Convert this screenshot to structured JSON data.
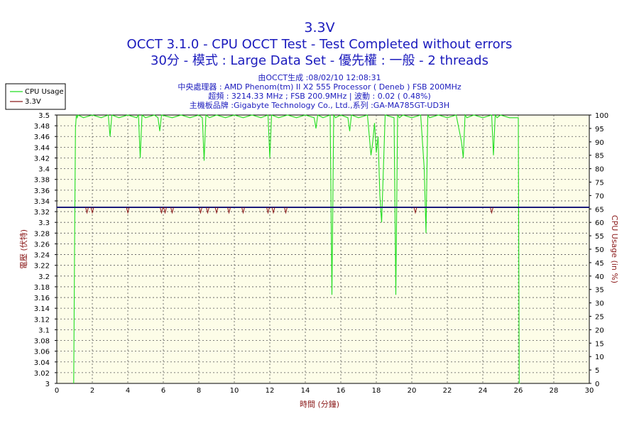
{
  "chart_data": {
    "type": "line",
    "title": "3.3V",
    "subtitle1": "OCCT 3.1.0 - CPU OCCT Test - Test Completed without errors",
    "subtitle2": "30分 - 模式 : Large Data Set - 優先權 : 一般 - 2 threads",
    "info_lines": [
      "由OCCT生成 :08/02/10 12:08:31",
      "中央處理器 : AMD Phenom(tm) II X2 555 Processor ( Deneb ) FSB 200MHz",
      "超頻 : 3214.33 MHz ; FSB 200.9MHz | 波動 : 0.02 ( 0.48%)",
      "主機板品牌 :Gigabyte Technology Co., Ltd.,系列 :GA-MA785GT-UD3H"
    ],
    "xlabel": "時間 (分鐘)",
    "ylabel_left": "電壓 (伏特)",
    "ylabel_right": "CPU Usage (in %)",
    "xlim": [
      0,
      30
    ],
    "ylim_left": [
      3.0,
      3.5
    ],
    "ylim_right": [
      0,
      100
    ],
    "x_ticks": [
      0,
      2,
      4,
      6,
      8,
      10,
      12,
      14,
      16,
      18,
      20,
      22,
      24,
      26,
      28,
      30
    ],
    "y_left_ticks": [
      3,
      3.02,
      3.04,
      3.06,
      3.08,
      3.1,
      3.12,
      3.14,
      3.16,
      3.18,
      3.2,
      3.22,
      3.24,
      3.26,
      3.28,
      3.3,
      3.32,
      3.34,
      3.36,
      3.38,
      3.4,
      3.42,
      3.44,
      3.46,
      3.48,
      3.5
    ],
    "y_right_ticks": [
      0,
      5,
      10,
      15,
      20,
      25,
      30,
      35,
      40,
      45,
      50,
      55,
      60,
      65,
      70,
      75,
      80,
      85,
      90,
      95,
      100
    ],
    "grid": true,
    "legend": "top-left",
    "colors": {
      "cpu": "#22dd22",
      "voltage": "#8b1a1a",
      "voltage_ref": "#1a1a7a",
      "title": "#1b1bbd",
      "plot_bg": "#fdfde8",
      "grid": "#555555"
    },
    "series": [
      {
        "name": "CPU Usage",
        "axis": "right",
        "x": [
          0.95,
          1.0,
          1.05,
          1.1,
          1.15,
          1.2,
          1.5,
          2.0,
          2.5,
          2.9,
          3.0,
          3.1,
          3.5,
          4.0,
          4.5,
          4.6,
          4.7,
          4.8,
          5.0,
          5.5,
          5.7,
          5.8,
          5.9,
          6.5,
          7.0,
          7.5,
          8.0,
          8.2,
          8.3,
          8.4,
          8.6,
          9.0,
          9.5,
          10.0,
          10.5,
          11.0,
          11.5,
          11.9,
          12.0,
          12.1,
          12.5,
          13.0,
          13.5,
          14.0,
          14.5,
          14.6,
          14.7,
          15.0,
          15.4,
          15.5,
          15.6,
          15.7,
          16.0,
          16.4,
          16.5,
          16.6,
          17.0,
          17.5,
          17.7,
          17.8,
          17.9,
          18.0,
          18.1,
          18.2,
          18.3,
          18.5,
          19.0,
          19.1,
          19.2,
          19.3,
          19.5,
          20.0,
          20.5,
          20.7,
          20.8,
          20.9,
          21.0,
          21.5,
          22.0,
          22.5,
          22.8,
          22.9,
          23.0,
          23.1,
          23.5,
          24.0,
          24.5,
          24.6,
          24.7,
          24.8,
          25.0,
          25.5,
          26.0,
          26.05,
          26.1
        ],
        "values": [
          0,
          50,
          95,
          100,
          99,
          100,
          99,
          100,
          99,
          100,
          92,
          100,
          99,
          100,
          99,
          100,
          84,
          100,
          99,
          100,
          99,
          94,
          100,
          99,
          100,
          99,
          100,
          99,
          83,
          100,
          99,
          100,
          99,
          100,
          99,
          100,
          99,
          100,
          84,
          100,
          99,
          100,
          99,
          100,
          99,
          95,
          100,
          99,
          100,
          33,
          100,
          99,
          100,
          99,
          94,
          100,
          99,
          100,
          85,
          90,
          97,
          86,
          92,
          70,
          60,
          100,
          99,
          33,
          100,
          99,
          100,
          99,
          100,
          80,
          56,
          100,
          99,
          100,
          99,
          100,
          90,
          84,
          100,
          99,
          100,
          99,
          100,
          85,
          100,
          99,
          100,
          99,
          99,
          0,
          0
        ]
      },
      {
        "name": "3.3V",
        "axis": "left",
        "baseline": 3.328,
        "dips": [
          1.7,
          2.0,
          4.0,
          5.9,
          6.1,
          6.5,
          8.1,
          8.5,
          9.0,
          9.7,
          10.5,
          11.9,
          12.2,
          12.9,
          20.2,
          24.5
        ],
        "dip_value": 3.318
      }
    ]
  }
}
